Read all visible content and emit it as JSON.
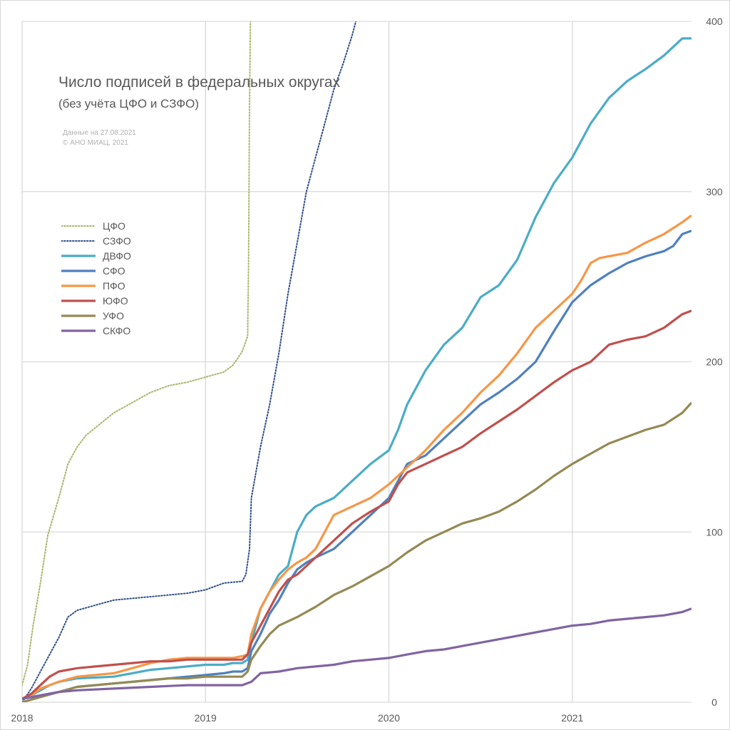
{
  "chart_data": {
    "type": "line",
    "title": "Число подписей в федеральных округах",
    "subtitle": "(без учёта ЦФО и СЗФО)",
    "notes": [
      "Данные на 27.08.2021",
      "© АНО МИАЦ, 2021"
    ],
    "xlabel": "",
    "ylabel": "",
    "xlim": [
      2018.0,
      2021.65
    ],
    "ylim": [
      0,
      400
    ],
    "x_ticks": [
      "2018",
      "2019",
      "2020",
      "2021"
    ],
    "y_ticks": [
      "0",
      "100",
      "200",
      "300",
      "400"
    ],
    "grid": true,
    "y_axis_position": "right",
    "legend_position": "left",
    "series": [
      {
        "name": "ЦФО",
        "color": "#a9b56a",
        "style": "dotted",
        "x": [
          2018.0,
          2018.03,
          2018.06,
          2018.1,
          2018.14,
          2018.2,
          2018.25,
          2018.3,
          2018.35,
          2018.42,
          2018.5,
          2018.6,
          2018.7,
          2018.8,
          2018.9,
          2019.0,
          2019.1,
          2019.15,
          2019.2,
          2019.23,
          2019.235,
          2019.24,
          2019.245
        ],
        "values": [
          10,
          22,
          45,
          70,
          98,
          120,
          140,
          150,
          157,
          163,
          170,
          176,
          182,
          186,
          188,
          191,
          194,
          198,
          206,
          215,
          260,
          350,
          400
        ]
      },
      {
        "name": "СЗФО",
        "color": "#2e4d8a",
        "style": "dotted",
        "x": [
          2018.0,
          2018.05,
          2018.1,
          2018.15,
          2018.2,
          2018.25,
          2018.3,
          2018.4,
          2018.5,
          2018.6,
          2018.7,
          2018.8,
          2018.9,
          2019.0,
          2019.1,
          2019.2,
          2019.22,
          2019.24,
          2019.25,
          2019.3,
          2019.35,
          2019.4,
          2019.45,
          2019.5,
          2019.55,
          2019.6,
          2019.65,
          2019.7,
          2019.75,
          2019.8,
          2019.82
        ],
        "values": [
          0,
          8,
          18,
          28,
          38,
          50,
          54,
          57,
          60,
          61,
          62,
          63,
          64,
          66,
          70,
          71,
          75,
          90,
          120,
          150,
          175,
          205,
          240,
          270,
          300,
          320,
          340,
          360,
          375,
          392,
          400
        ]
      },
      {
        "name": "ДВФО",
        "color": "#4bacc6",
        "style": "solid",
        "x": [
          2018.0,
          2018.05,
          2018.1,
          2018.15,
          2018.2,
          2018.3,
          2018.5,
          2018.6,
          2018.7,
          2018.8,
          2018.9,
          2019.0,
          2019.1,
          2019.15,
          2019.2,
          2019.23,
          2019.25,
          2019.3,
          2019.35,
          2019.4,
          2019.45,
          2019.5,
          2019.55,
          2019.6,
          2019.7,
          2019.8,
          2019.9,
          2020.0,
          2020.05,
          2020.1,
          2020.2,
          2020.3,
          2020.4,
          2020.5,
          2020.6,
          2020.7,
          2020.8,
          2020.9,
          2021.0,
          2021.1,
          2021.2,
          2021.3,
          2021.4,
          2021.5,
          2021.6,
          2021.65
        ],
        "values": [
          2,
          4,
          7,
          10,
          12,
          14,
          15,
          17,
          19,
          20,
          21,
          22,
          22,
          23,
          23,
          25,
          35,
          55,
          65,
          75,
          80,
          100,
          110,
          115,
          120,
          130,
          140,
          148,
          160,
          175,
          195,
          210,
          220,
          238,
          245,
          260,
          285,
          305,
          320,
          340,
          355,
          365,
          372,
          380,
          390,
          390
        ]
      },
      {
        "name": "СФО",
        "color": "#4f81bd",
        "style": "solid",
        "x": [
          2018.0,
          2018.1,
          2018.2,
          2018.3,
          2018.5,
          2018.6,
          2018.7,
          2018.8,
          2018.9,
          2019.0,
          2019.1,
          2019.15,
          2019.2,
          2019.23,
          2019.25,
          2019.3,
          2019.35,
          2019.4,
          2019.45,
          2019.5,
          2019.55,
          2019.6,
          2019.7,
          2019.8,
          2019.85,
          2019.9,
          2020.0,
          2020.05,
          2020.1,
          2020.2,
          2020.3,
          2020.4,
          2020.5,
          2020.6,
          2020.7,
          2020.8,
          2020.9,
          2021.0,
          2021.1,
          2021.2,
          2021.3,
          2021.4,
          2021.5,
          2021.55,
          2021.6,
          2021.65
        ],
        "values": [
          2,
          4,
          6,
          9,
          11,
          12,
          13,
          14,
          15,
          16,
          17,
          18,
          18,
          20,
          30,
          40,
          52,
          60,
          70,
          78,
          82,
          85,
          90,
          100,
          105,
          110,
          120,
          130,
          140,
          145,
          155,
          165,
          175,
          182,
          190,
          200,
          218,
          235,
          245,
          252,
          258,
          262,
          265,
          268,
          275,
          277
        ]
      },
      {
        "name": "ПФО",
        "color": "#f79646",
        "style": "solid",
        "x": [
          2018.0,
          2018.05,
          2018.1,
          2018.15,
          2018.2,
          2018.3,
          2018.5,
          2018.6,
          2018.7,
          2018.8,
          2018.9,
          2019.0,
          2019.1,
          2019.15,
          2019.2,
          2019.23,
          2019.25,
          2019.3,
          2019.35,
          2019.4,
          2019.45,
          2019.5,
          2019.55,
          2019.6,
          2019.65,
          2019.7,
          2019.8,
          2019.9,
          2020.0,
          2020.1,
          2020.2,
          2020.3,
          2020.4,
          2020.5,
          2020.6,
          2020.7,
          2020.8,
          2020.9,
          2021.0,
          2021.05,
          2021.1,
          2021.15,
          2021.2,
          2021.3,
          2021.4,
          2021.5,
          2021.6,
          2021.65
        ],
        "values": [
          2,
          4,
          8,
          10,
          12,
          15,
          17,
          20,
          23,
          25,
          26,
          26,
          26,
          26,
          27,
          28,
          40,
          55,
          65,
          72,
          78,
          82,
          85,
          90,
          100,
          110,
          115,
          120,
          128,
          138,
          148,
          160,
          170,
          182,
          192,
          205,
          220,
          230,
          240,
          248,
          258,
          261,
          262,
          264,
          270,
          275,
          282,
          286
        ]
      },
      {
        "name": "ЮФО",
        "color": "#c0504d",
        "style": "solid",
        "x": [
          2018.0,
          2018.05,
          2018.1,
          2018.15,
          2018.2,
          2018.3,
          2018.5,
          2018.6,
          2018.7,
          2018.8,
          2018.9,
          2019.0,
          2019.1,
          2019.15,
          2019.2,
          2019.23,
          2019.25,
          2019.3,
          2019.35,
          2019.4,
          2019.45,
          2019.5,
          2019.55,
          2019.6,
          2019.7,
          2019.8,
          2019.9,
          2020.0,
          2020.05,
          2020.1,
          2020.2,
          2020.3,
          2020.4,
          2020.5,
          2020.6,
          2020.7,
          2020.8,
          2020.9,
          2021.0,
          2021.1,
          2021.2,
          2021.3,
          2021.4,
          2021.5,
          2021.6,
          2021.65
        ],
        "values": [
          2,
          5,
          10,
          15,
          18,
          20,
          22,
          23,
          24,
          24,
          25,
          25,
          25,
          25,
          25,
          28,
          35,
          45,
          55,
          65,
          72,
          75,
          80,
          85,
          95,
          105,
          112,
          118,
          128,
          135,
          140,
          145,
          150,
          158,
          165,
          172,
          180,
          188,
          195,
          200,
          210,
          213,
          215,
          220,
          228,
          230
        ]
      },
      {
        "name": "УФО",
        "color": "#948a54",
        "style": "solid",
        "x": [
          2018.0,
          2018.1,
          2018.2,
          2018.3,
          2018.5,
          2018.6,
          2018.7,
          2018.8,
          2018.9,
          2019.0,
          2019.1,
          2019.15,
          2019.2,
          2019.23,
          2019.25,
          2019.3,
          2019.35,
          2019.4,
          2019.5,
          2019.6,
          2019.7,
          2019.8,
          2019.9,
          2020.0,
          2020.1,
          2020.2,
          2020.3,
          2020.4,
          2020.5,
          2020.6,
          2020.7,
          2020.8,
          2020.9,
          2021.0,
          2021.1,
          2021.2,
          2021.3,
          2021.4,
          2021.5,
          2021.6,
          2021.65
        ],
        "values": [
          0,
          3,
          6,
          9,
          11,
          12,
          13,
          14,
          14,
          15,
          15,
          15,
          15,
          18,
          25,
          33,
          40,
          45,
          50,
          56,
          63,
          68,
          74,
          80,
          88,
          95,
          100,
          105,
          108,
          112,
          118,
          125,
          133,
          140,
          146,
          152,
          156,
          160,
          163,
          170,
          176
        ]
      },
      {
        "name": "СКФО",
        "color": "#8064a2",
        "style": "solid",
        "x": [
          2018.0,
          2018.1,
          2018.2,
          2018.3,
          2018.5,
          2018.7,
          2018.9,
          2019.0,
          2019.1,
          2019.2,
          2019.25,
          2019.3,
          2019.4,
          2019.5,
          2019.6,
          2019.7,
          2019.8,
          2019.9,
          2020.0,
          2020.1,
          2020.2,
          2020.3,
          2020.4,
          2020.5,
          2020.6,
          2020.7,
          2020.8,
          2020.9,
          2021.0,
          2021.1,
          2021.2,
          2021.3,
          2021.4,
          2021.5,
          2021.6,
          2021.65
        ],
        "values": [
          2,
          4,
          6,
          7,
          8,
          9,
          10,
          10,
          10,
          10,
          12,
          17,
          18,
          20,
          21,
          22,
          24,
          25,
          26,
          28,
          30,
          31,
          33,
          35,
          37,
          39,
          41,
          43,
          45,
          46,
          48,
          49,
          50,
          51,
          53,
          55
        ]
      }
    ]
  }
}
